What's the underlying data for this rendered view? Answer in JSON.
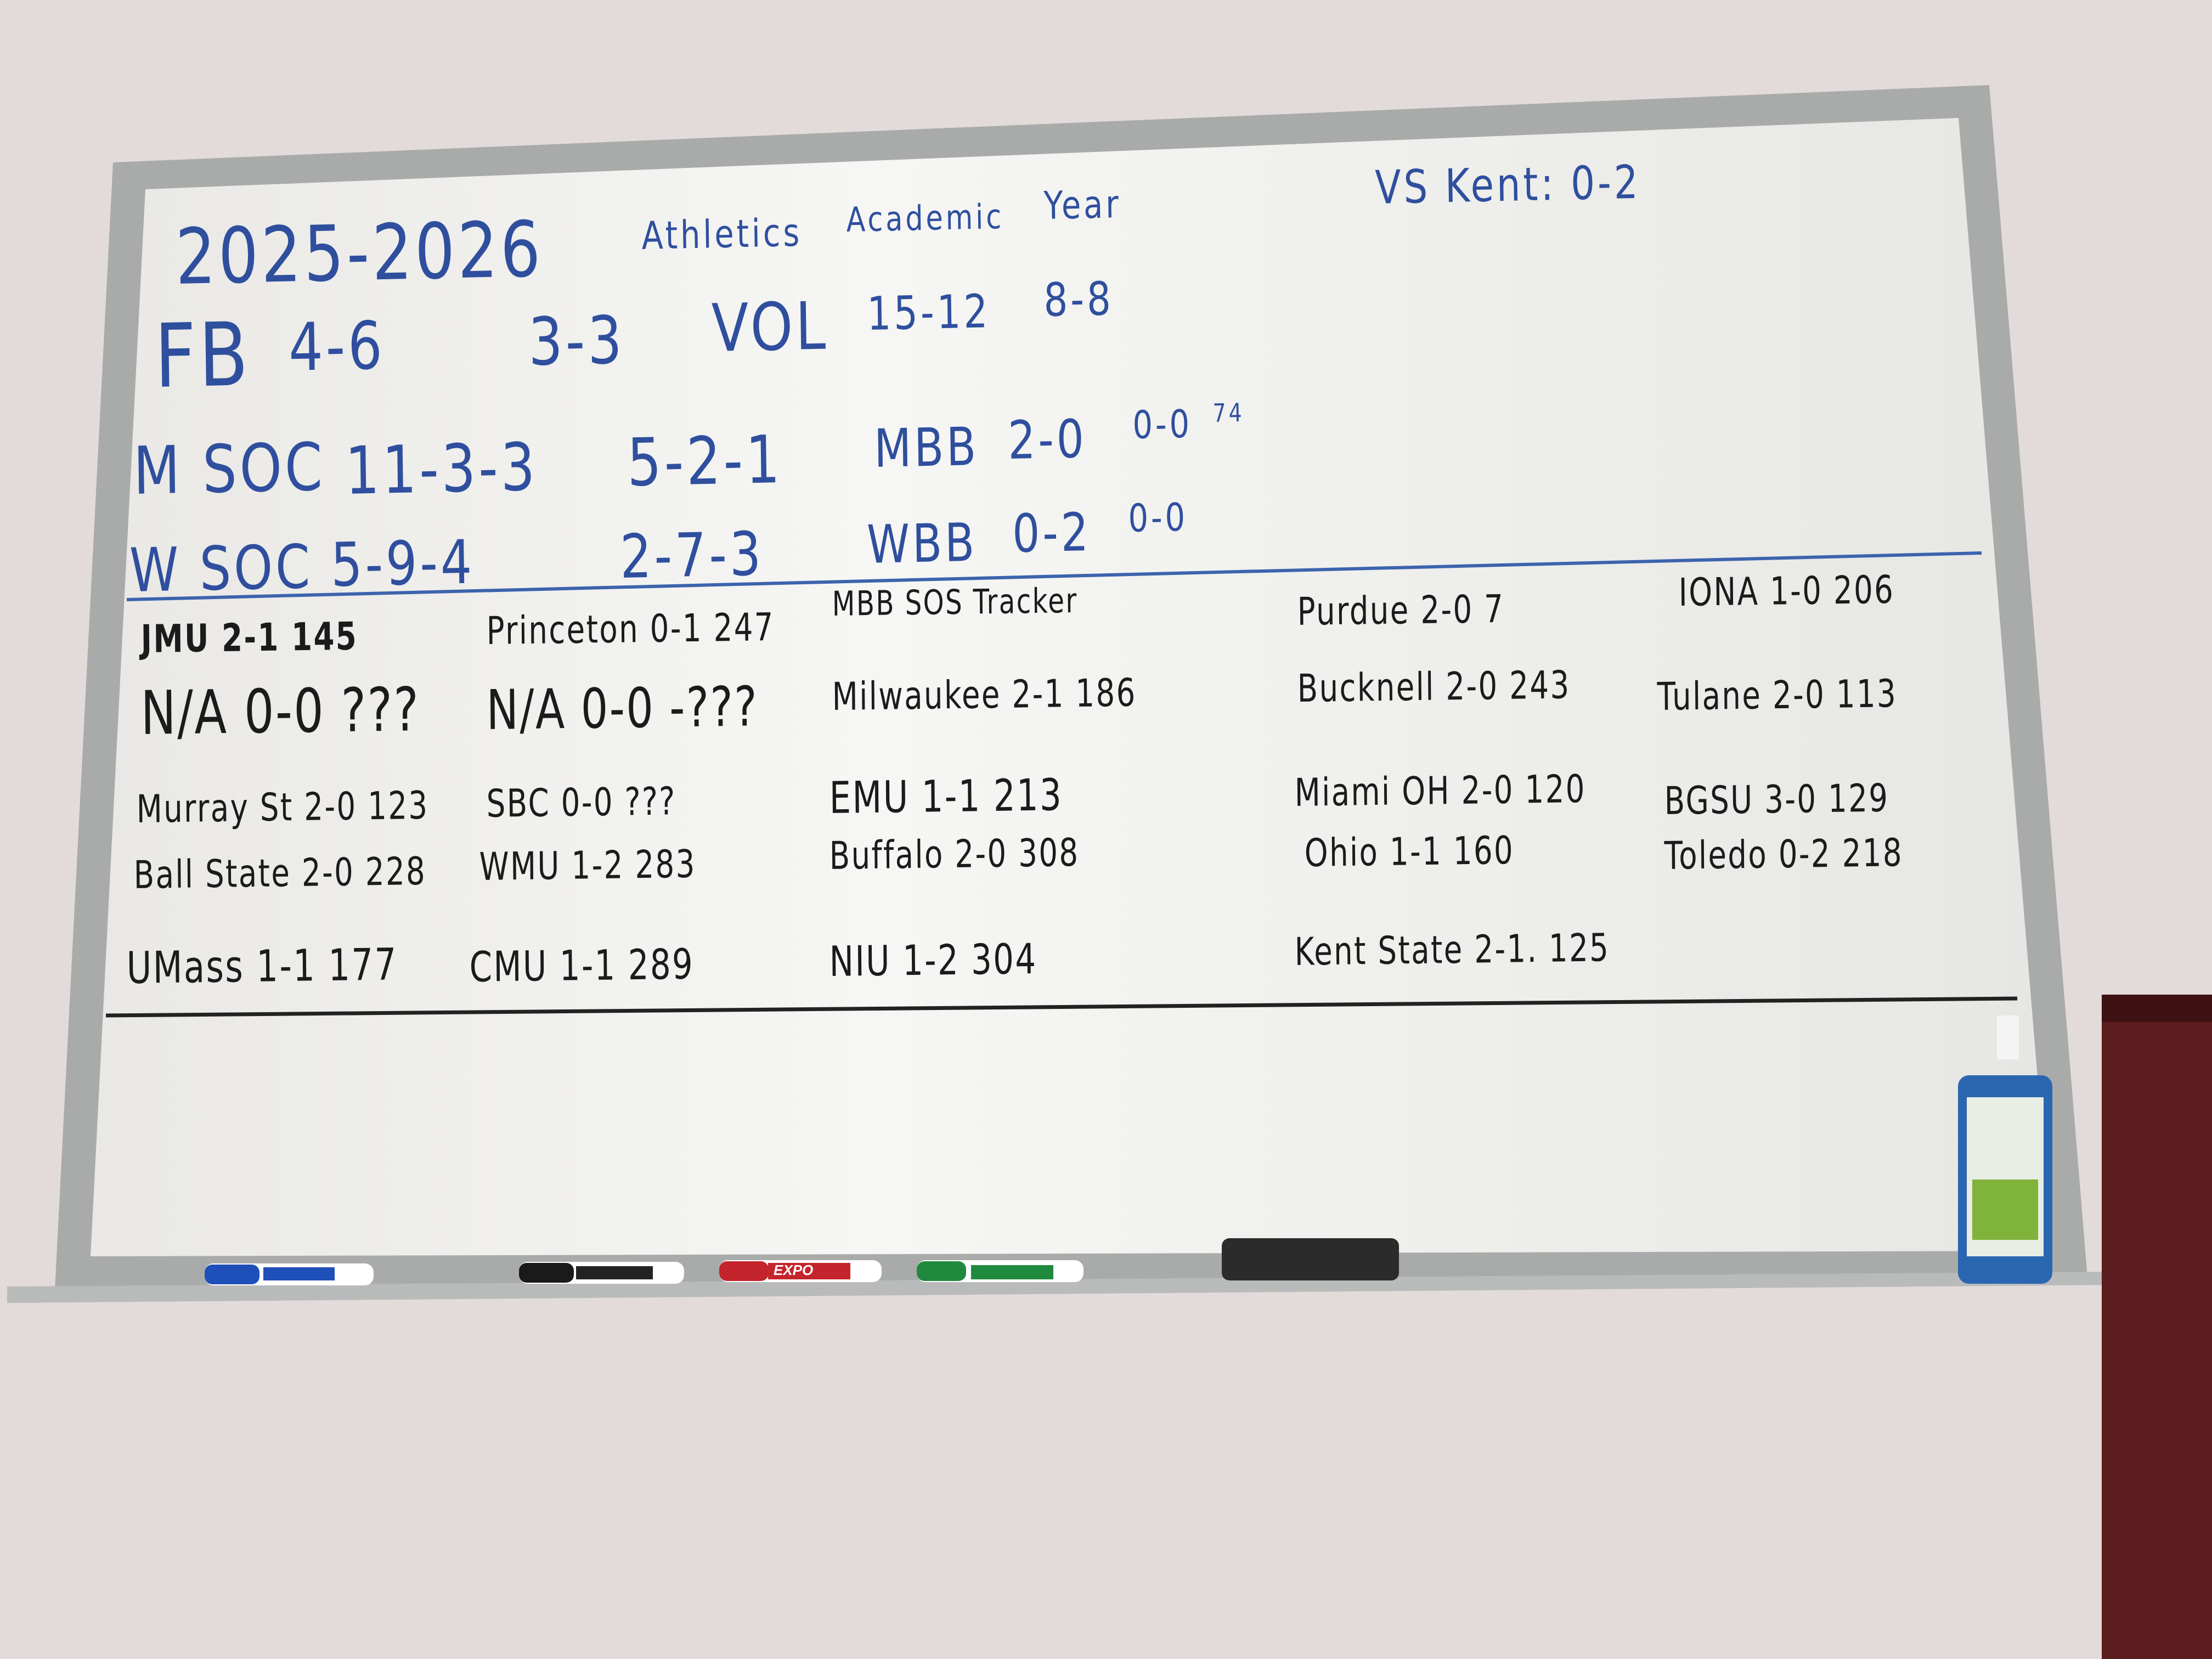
{
  "header": {
    "year": "2025-2026",
    "words": [
      "Athletics",
      "Academic",
      "Year"
    ],
    "vs_kent": "VS Kent: 0-2"
  },
  "records": {
    "fb": {
      "sport": "FB",
      "overall": "4-6",
      "conf": "3-3"
    },
    "vol": {
      "sport": "VOL",
      "overall": "15-12",
      "conf": "8-8"
    },
    "msoc": {
      "sport": "M SOC",
      "overall": "11-3-3",
      "conf": "5-2-1"
    },
    "mbb": {
      "sport": "MBB",
      "overall": "2-0",
      "conf": "0-0",
      "note": "74"
    },
    "wsoc": {
      "sport": "W SOC",
      "overall": "5-9-4",
      "conf": "2-7-3"
    },
    "wbb": {
      "sport": "WBB",
      "overall": "0-2",
      "conf": "0-0"
    }
  },
  "sos": {
    "heading": "MBB SOS Tracker",
    "entries": [
      "JMU 2-1 145",
      "Princeton 0-1 247",
      "Purdue 2-0 7",
      "IONA 1-0 206",
      "N/A 0-0 ???",
      "N/A 0-0 -???",
      "Milwaukee 2-1 186",
      "Bucknell 2-0 243",
      "Tulane 2-0 113",
      "Murray St 2-0 123",
      "SBC 0-0 ???",
      "EMU 1-1 213",
      "Miami OH 2-0 120",
      "BGSU 3-0 129",
      "Ball State 2-0 228",
      "WMU 1-2 283",
      "Buffalo 2-0 308",
      "Ohio 1-1 160",
      "Toledo 0-2 218",
      "UMass 1-1 177",
      "CMU 1-1 289",
      "NIU 1-2 304",
      "Kent State 2-1. 125"
    ]
  },
  "tray": {
    "marker_brand": "EXPO",
    "marker_colors": [
      "#1f4fb8",
      "#1a1a1a",
      "#c4242b",
      "#1f8a3e"
    ]
  },
  "colors": {
    "blue_ink": "#2f4f9e",
    "black_ink": "#1b1b1b",
    "board": "#efeeeb",
    "wall": "#e3dbda",
    "cabinet": "#5b1d1e"
  }
}
